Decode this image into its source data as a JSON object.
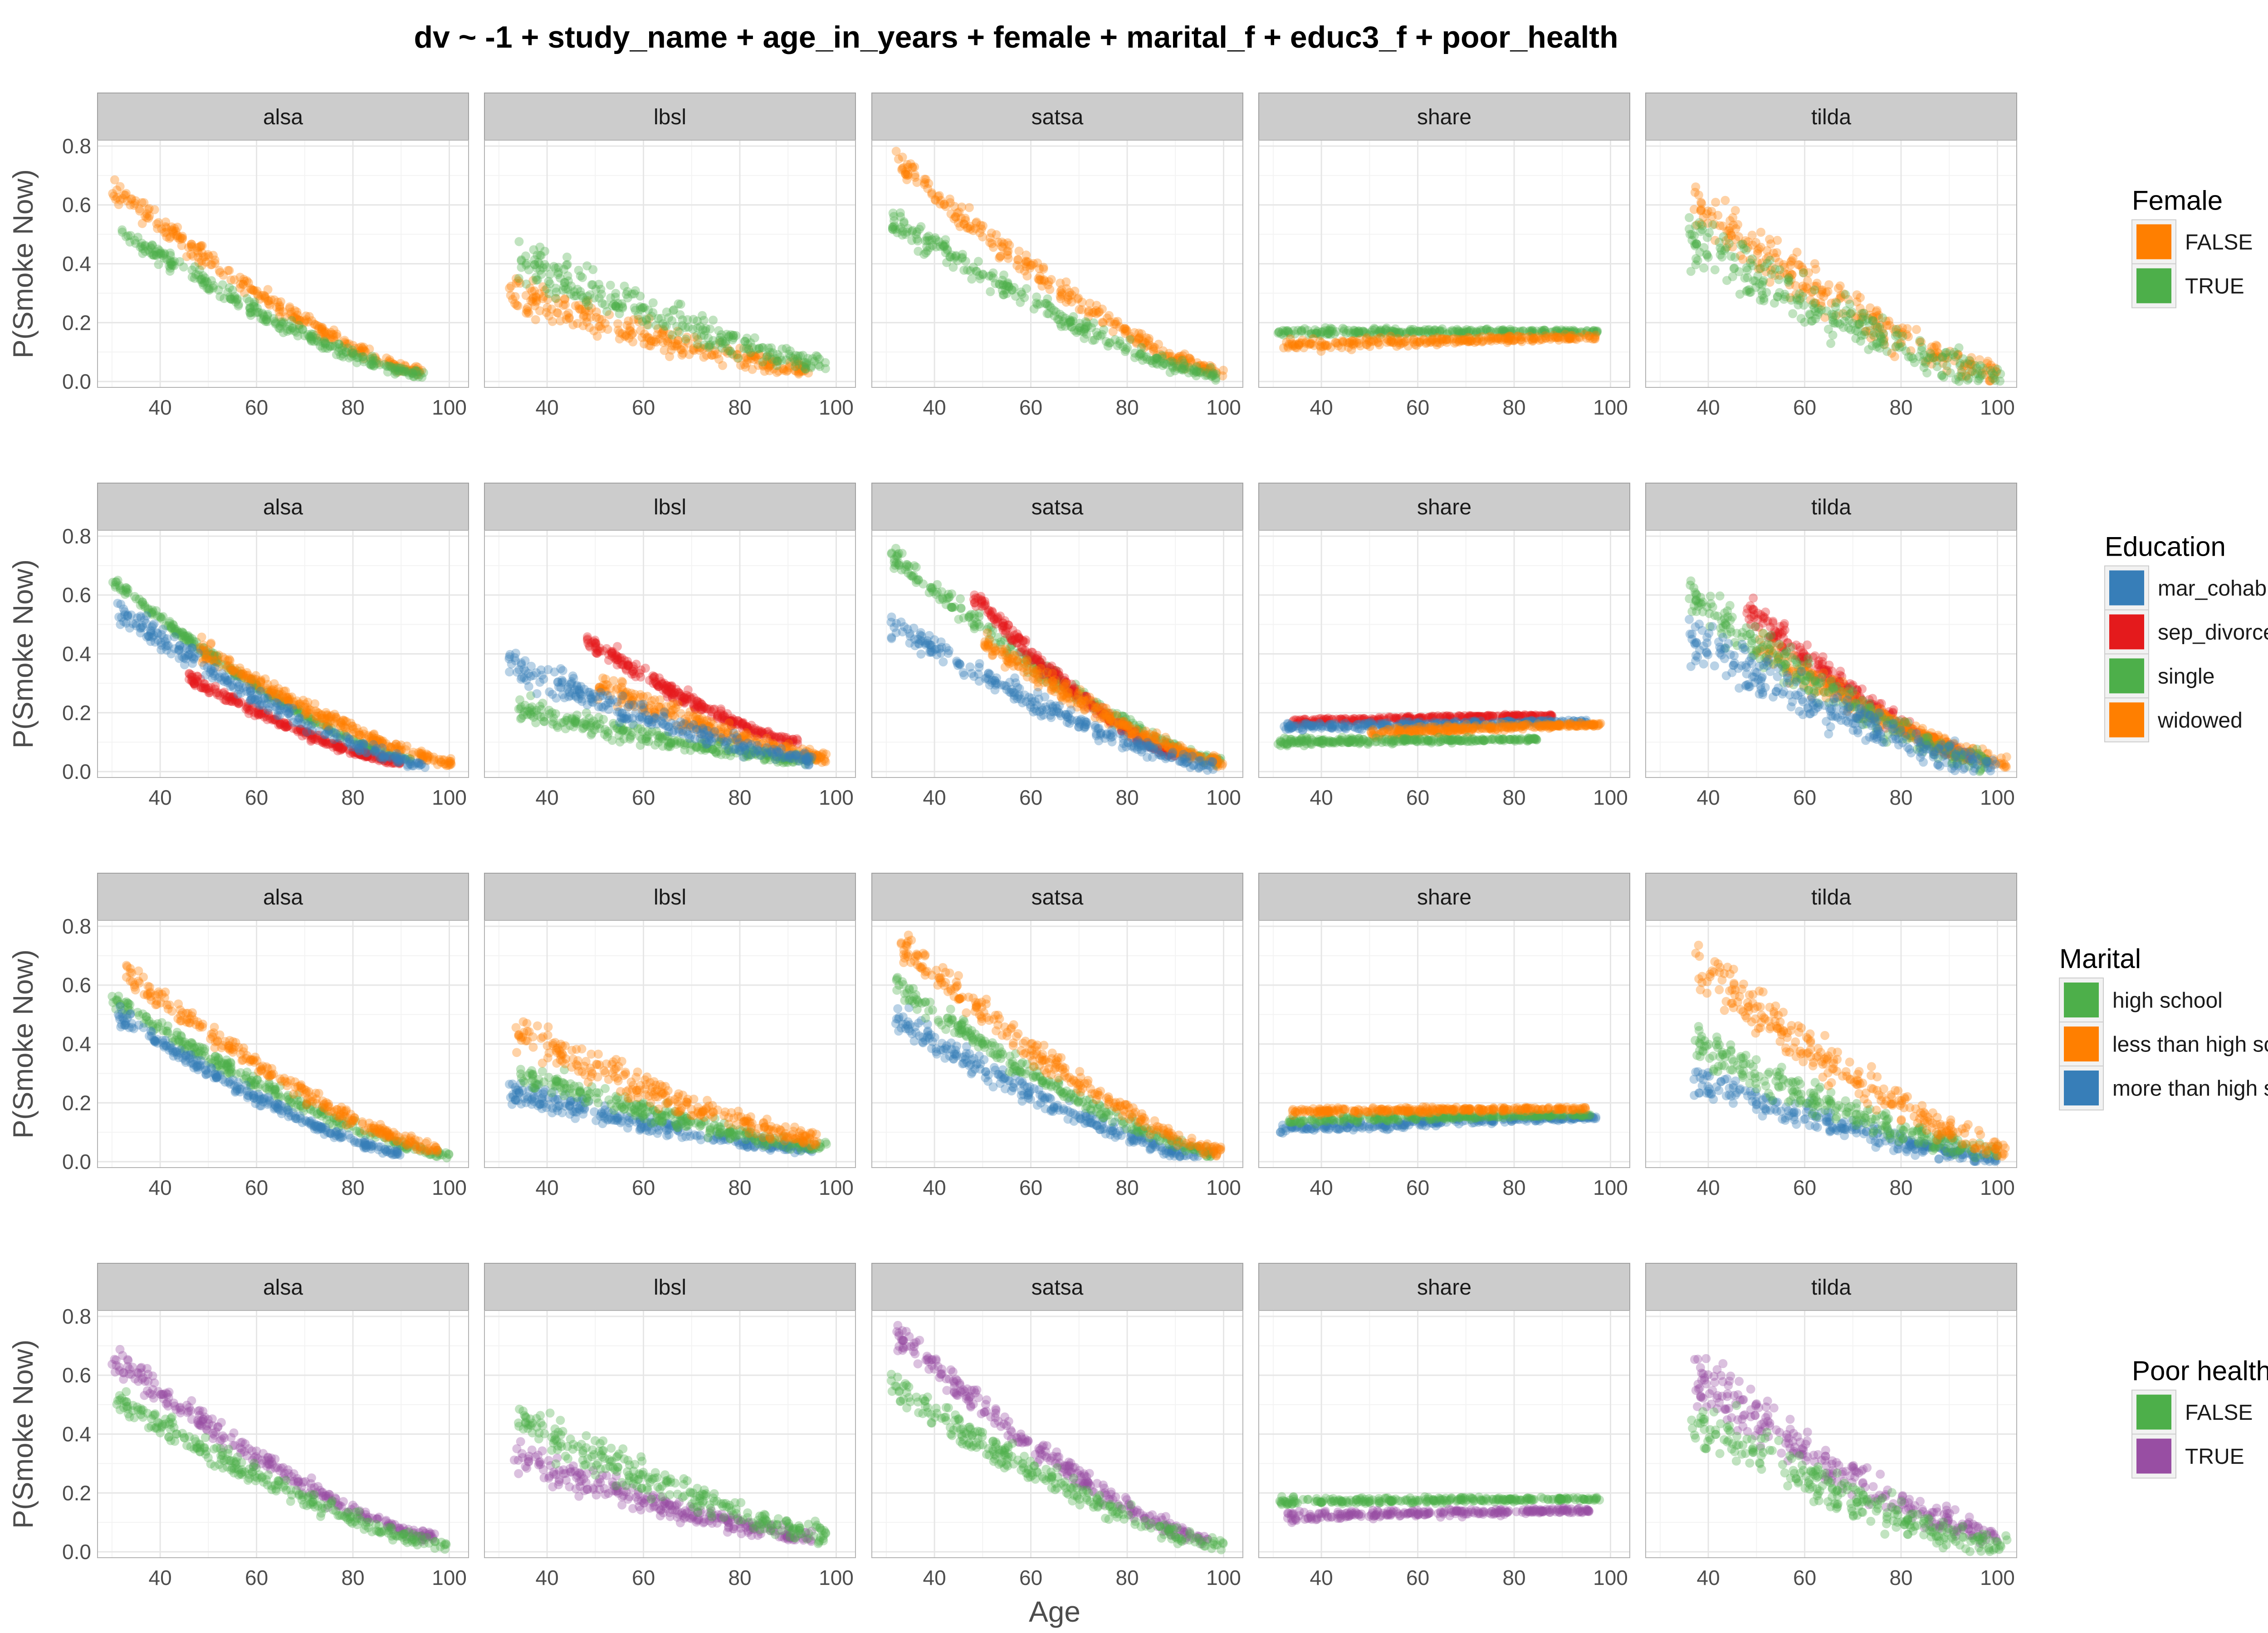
{
  "chart_data": {
    "type": "scatter",
    "title": "dv ~ -1 + study_name + age_in_years + female + marital_f + educ3_f + poor_health",
    "xlabel": "Age",
    "ylabel": "P(Smoke Now)",
    "facets": [
      "alsa",
      "lbsl",
      "satsa",
      "share",
      "tilda"
    ],
    "xlim": [
      27,
      104
    ],
    "ylim": [
      -0.02,
      0.82
    ],
    "x_ticks": [
      40,
      60,
      80,
      100
    ],
    "y_ticks": [
      0.0,
      0.2,
      0.4,
      0.6,
      0.8
    ],
    "y_tick_labels": [
      "0.0",
      "0.2",
      "0.4",
      "0.6",
      "0.8"
    ],
    "grid": true,
    "legend_position": "right",
    "point_opacity": 0.35,
    "rows": [
      {
        "legend_title": "Female",
        "groups": [
          {
            "name": "FALSE",
            "color": "#FF7F00"
          },
          {
            "name": "TRUE",
            "color": "#4DAF4A"
          }
        ],
        "panels": {
          "alsa": [
            {
              "group": "FALSE",
              "from": [
                30,
                0.66
              ],
              "to": [
                95,
                0.03
              ],
              "spread": 0.06
            },
            {
              "group": "TRUE",
              "from": [
                31,
                0.52
              ],
              "to": [
                95,
                0.02
              ],
              "spread": 0.05
            }
          ],
          "lbsl": [
            {
              "group": "FALSE",
              "from": [
                32,
                0.3
              ],
              "to": [
                95,
                0.04
              ],
              "spread": 0.1
            },
            {
              "group": "TRUE",
              "from": [
                34,
                0.42
              ],
              "to": [
                98,
                0.06
              ],
              "spread": 0.12
            }
          ],
          "satsa": [
            {
              "group": "FALSE",
              "from": [
                32,
                0.75
              ],
              "to": [
                100,
                0.03
              ],
              "spread": 0.08
            },
            {
              "group": "TRUE",
              "from": [
                31,
                0.55
              ],
              "to": [
                99,
                0.02
              ],
              "spread": 0.07
            }
          ],
          "share": [
            {
              "group": "TRUE",
              "from": [
                31,
                0.17
              ],
              "to": [
                98,
                0.17
              ],
              "spread": 0.02
            },
            {
              "group": "FALSE",
              "from": [
                32,
                0.12
              ],
              "to": [
                97,
                0.15
              ],
              "spread": 0.03
            }
          ],
          "tilda": [
            {
              "group": "FALSE",
              "from": [
                37,
                0.6
              ],
              "to": [
                100,
                0.03
              ],
              "spread": 0.15
            },
            {
              "group": "TRUE",
              "from": [
                36,
                0.48
              ],
              "to": [
                101,
                0.02
              ],
              "spread": 0.16
            }
          ]
        }
      },
      {
        "legend_title": "Education",
        "groups": [
          {
            "name": "mar_cohab",
            "color": "#377EB8"
          },
          {
            "name": "sep_divorced",
            "color": "#E41A1C"
          },
          {
            "name": "single",
            "color": "#4DAF4A"
          },
          {
            "name": "widowed",
            "color": "#FF7F00"
          }
        ],
        "panels": {
          "alsa": [
            {
              "group": "single",
              "from": [
                30,
                0.65
              ],
              "to": [
                92,
                0.04
              ],
              "spread": 0.03
            },
            {
              "group": "widowed",
              "from": [
                48,
                0.42
              ],
              "to": [
                101,
                0.03
              ],
              "spread": 0.05
            },
            {
              "group": "sep_divorced",
              "from": [
                46,
                0.32
              ],
              "to": [
                90,
                0.03
              ],
              "spread": 0.03
            },
            {
              "group": "mar_cohab",
              "from": [
                31,
                0.55
              ],
              "to": [
                95,
                0.02
              ],
              "spread": 0.06
            }
          ],
          "lbsl": [
            {
              "group": "sep_divorced",
              "from": [
                48,
                0.45
              ],
              "to": [
                92,
                0.1
              ],
              "spread": 0.05
            },
            {
              "group": "widowed",
              "from": [
                50,
                0.3
              ],
              "to": [
                98,
                0.05
              ],
              "spread": 0.07
            },
            {
              "group": "single",
              "from": [
                33,
                0.22
              ],
              "to": [
                95,
                0.04
              ],
              "spread": 0.06
            },
            {
              "group": "mar_cohab",
              "from": [
                32,
                0.36
              ],
              "to": [
                95,
                0.04
              ],
              "spread": 0.08
            }
          ],
          "satsa": [
            {
              "group": "single",
              "from": [
                31,
                0.74
              ],
              "to": [
                100,
                0.03
              ],
              "spread": 0.06
            },
            {
              "group": "sep_divorced",
              "from": [
                48,
                0.6
              ],
              "to": [
                90,
                0.06
              ],
              "spread": 0.05
            },
            {
              "group": "widowed",
              "from": [
                50,
                0.45
              ],
              "to": [
                100,
                0.03
              ],
              "spread": 0.06
            },
            {
              "group": "mar_cohab",
              "from": [
                31,
                0.5
              ],
              "to": [
                98,
                0.02
              ],
              "spread": 0.07
            }
          ],
          "share": [
            {
              "group": "sep_divorced",
              "from": [
                34,
                0.17
              ],
              "to": [
                88,
                0.19
              ],
              "spread": 0.015
            },
            {
              "group": "mar_cohab",
              "from": [
                32,
                0.15
              ],
              "to": [
                95,
                0.17
              ],
              "spread": 0.02
            },
            {
              "group": "widowed",
              "from": [
                50,
                0.13
              ],
              "to": [
                98,
                0.16
              ],
              "spread": 0.025
            },
            {
              "group": "single",
              "from": [
                31,
                0.1
              ],
              "to": [
                85,
                0.11
              ],
              "spread": 0.02
            }
          ],
          "tilda": [
            {
              "group": "sep_divorced",
              "from": [
                48,
                0.56
              ],
              "to": [
                95,
                0.05
              ],
              "spread": 0.08
            },
            {
              "group": "widowed",
              "from": [
                50,
                0.42
              ],
              "to": [
                102,
                0.03
              ],
              "spread": 0.08
            },
            {
              "group": "single",
              "from": [
                36,
                0.6
              ],
              "to": [
                98,
                0.03
              ],
              "spread": 0.12
            },
            {
              "group": "mar_cohab",
              "from": [
                36,
                0.45
              ],
              "to": [
                100,
                0.02
              ],
              "spread": 0.14
            }
          ]
        }
      },
      {
        "legend_title": "Marital",
        "groups": [
          {
            "name": "high school",
            "color": "#4DAF4A"
          },
          {
            "name": "less than high school",
            "color": "#FF7F00"
          },
          {
            "name": "more than high school",
            "color": "#377EB8"
          }
        ],
        "panels": {
          "alsa": [
            {
              "group": "high school",
              "from": [
                30,
                0.55
              ],
              "to": [
                100,
                0.02
              ],
              "spread": 0.05
            },
            {
              "group": "more than high school",
              "from": [
                31,
                0.5
              ],
              "to": [
                90,
                0.03
              ],
              "spread": 0.04
            },
            {
              "group": "less than high school",
              "from": [
                33,
                0.64
              ],
              "to": [
                98,
                0.04
              ],
              "spread": 0.06
            }
          ],
          "lbsl": [
            {
              "group": "more than high school",
              "from": [
                32,
                0.24
              ],
              "to": [
                95,
                0.04
              ],
              "spread": 0.06
            },
            {
              "group": "high school",
              "from": [
                34,
                0.3
              ],
              "to": [
                98,
                0.05
              ],
              "spread": 0.07
            },
            {
              "group": "less than high school",
              "from": [
                33,
                0.45
              ],
              "to": [
                96,
                0.08
              ],
              "spread": 0.1
            }
          ],
          "satsa": [
            {
              "group": "more than high school",
              "from": [
                31,
                0.5
              ],
              "to": [
                95,
                0.02
              ],
              "spread": 0.07
            },
            {
              "group": "high school",
              "from": [
                32,
                0.6
              ],
              "to": [
                98,
                0.03
              ],
              "spread": 0.06
            },
            {
              "group": "less than high school",
              "from": [
                33,
                0.74
              ],
              "to": [
                100,
                0.03
              ],
              "spread": 0.08
            }
          ],
          "share": [
            {
              "group": "more than high school",
              "from": [
                31,
                0.11
              ],
              "to": [
                97,
                0.15
              ],
              "spread": 0.025
            },
            {
              "group": "high school",
              "from": [
                33,
                0.14
              ],
              "to": [
                96,
                0.16
              ],
              "spread": 0.02
            },
            {
              "group": "less than high school",
              "from": [
                34,
                0.17
              ],
              "to": [
                95,
                0.18
              ],
              "spread": 0.02
            }
          ],
          "tilda": [
            {
              "group": "more than high school",
              "from": [
                37,
                0.28
              ],
              "to": [
                100,
                0.01
              ],
              "spread": 0.08
            },
            {
              "group": "high school",
              "from": [
                37,
                0.4
              ],
              "to": [
                100,
                0.03
              ],
              "spread": 0.1
            },
            {
              "group": "less than high school",
              "from": [
                37,
                0.68
              ],
              "to": [
                102,
                0.04
              ],
              "spread": 0.14
            }
          ]
        }
      },
      {
        "legend_title": "Poor health",
        "groups": [
          {
            "name": "FALSE",
            "color": "#4DAF4A"
          },
          {
            "name": "TRUE",
            "color": "#984EA3"
          }
        ],
        "panels": {
          "alsa": [
            {
              "group": "TRUE",
              "from": [
                30,
                0.66
              ],
              "to": [
                97,
                0.05
              ],
              "spread": 0.07
            },
            {
              "group": "FALSE",
              "from": [
                31,
                0.52
              ],
              "to": [
                100,
                0.02
              ],
              "spread": 0.07
            }
          ],
          "lbsl": [
            {
              "group": "TRUE",
              "from": [
                33,
                0.32
              ],
              "to": [
                95,
                0.05
              ],
              "spread": 0.08
            },
            {
              "group": "FALSE",
              "from": [
                34,
                0.45
              ],
              "to": [
                98,
                0.06
              ],
              "spread": 0.12
            }
          ],
          "satsa": [
            {
              "group": "TRUE",
              "from": [
                32,
                0.74
              ],
              "to": [
                97,
                0.04
              ],
              "spread": 0.08
            },
            {
              "group": "FALSE",
              "from": [
                31,
                0.56
              ],
              "to": [
                100,
                0.02
              ],
              "spread": 0.09
            }
          ],
          "share": [
            {
              "group": "FALSE",
              "from": [
                31,
                0.17
              ],
              "to": [
                98,
                0.18
              ],
              "spread": 0.02
            },
            {
              "group": "TRUE",
              "from": [
                33,
                0.12
              ],
              "to": [
                96,
                0.14
              ],
              "spread": 0.025
            }
          ],
          "tilda": [
            {
              "group": "TRUE",
              "from": [
                37,
                0.6
              ],
              "to": [
                100,
                0.05
              ],
              "spread": 0.14
            },
            {
              "group": "FALSE",
              "from": [
                36,
                0.45
              ],
              "to": [
                102,
                0.02
              ],
              "spread": 0.15
            }
          ]
        }
      }
    ]
  }
}
